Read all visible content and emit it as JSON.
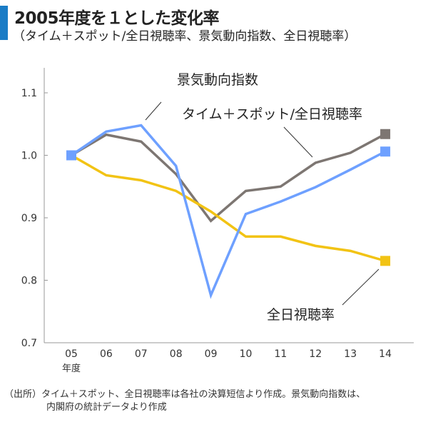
{
  "header": {
    "title": "2005年度を１とした変化率",
    "subtitle": "（タイム＋スポット/全日視聴率、景気動向指数、全日視聴率）"
  },
  "chart_data": {
    "type": "line",
    "title": "2005年度を１とした変化率",
    "categories": [
      "05",
      "06",
      "07",
      "08",
      "09",
      "10",
      "11",
      "12",
      "13",
      "14"
    ],
    "x_unit_label": "年度",
    "ylim": [
      0.7,
      1.13
    ],
    "yticks": [
      "0.7",
      "0.8",
      "0.9",
      "1.0",
      "1.1"
    ],
    "series": [
      {
        "name": "タイム＋スポット/全日視聴率",
        "color": "#7d7672",
        "values": [
          1.0,
          1.033,
          1.022,
          0.97,
          0.895,
          0.943,
          0.95,
          0.988,
          1.004,
          1.034
        ]
      },
      {
        "name": "全日視聴率",
        "color": "#f2c314",
        "values": [
          1.0,
          0.968,
          0.96,
          0.943,
          0.91,
          0.87,
          0.87,
          0.855,
          0.847,
          0.831
        ]
      },
      {
        "name": "景気動向指数",
        "color": "#6ea0ff",
        "values": [
          1.0,
          1.038,
          1.048,
          0.983,
          0.776,
          0.906,
          0.926,
          0.949,
          0.977,
          1.006
        ]
      }
    ]
  },
  "footnote": {
    "line1": "（出所）タイム＋スポット、全日視聴率は各社の決算短信より作成。景気動向指数は、",
    "line2": "内閣府の統計データより作成"
  }
}
